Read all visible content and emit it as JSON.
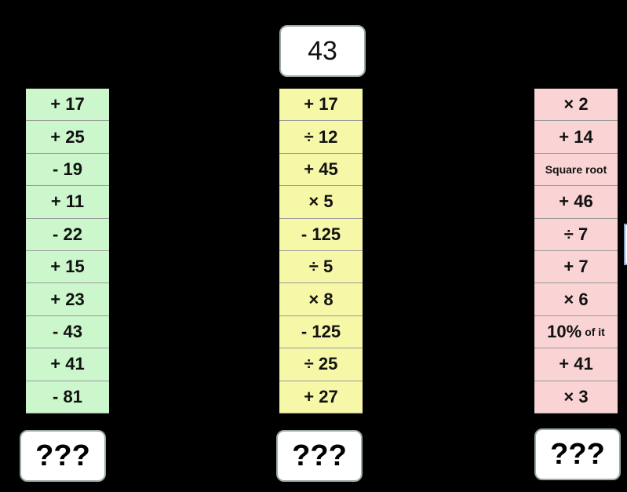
{
  "start": {
    "value": "43"
  },
  "columns": [
    {
      "color": "#ccf7cc",
      "cells": [
        "+ 17",
        "+ 25",
        "- 19",
        "+ 11",
        "- 22",
        "+ 15",
        "+ 23",
        "- 43",
        "+ 41",
        "- 81"
      ],
      "result": "???"
    },
    {
      "color": "#f7f7a8",
      "cells": [
        "+ 17",
        "÷ 12",
        "+ 45",
        "× 5",
        "- 125",
        "÷ 5",
        "× 8",
        "- 125",
        "÷ 25",
        "+ 27"
      ],
      "result": "???"
    },
    {
      "color": "#fad4d4",
      "cells": [
        "× 2",
        "+ 14",
        "Square root",
        "+ 46",
        "÷ 7",
        "+ 7",
        "× 6",
        [
          "10%",
          "of it"
        ],
        "+ 41",
        "× 3"
      ],
      "result": "???"
    }
  ]
}
